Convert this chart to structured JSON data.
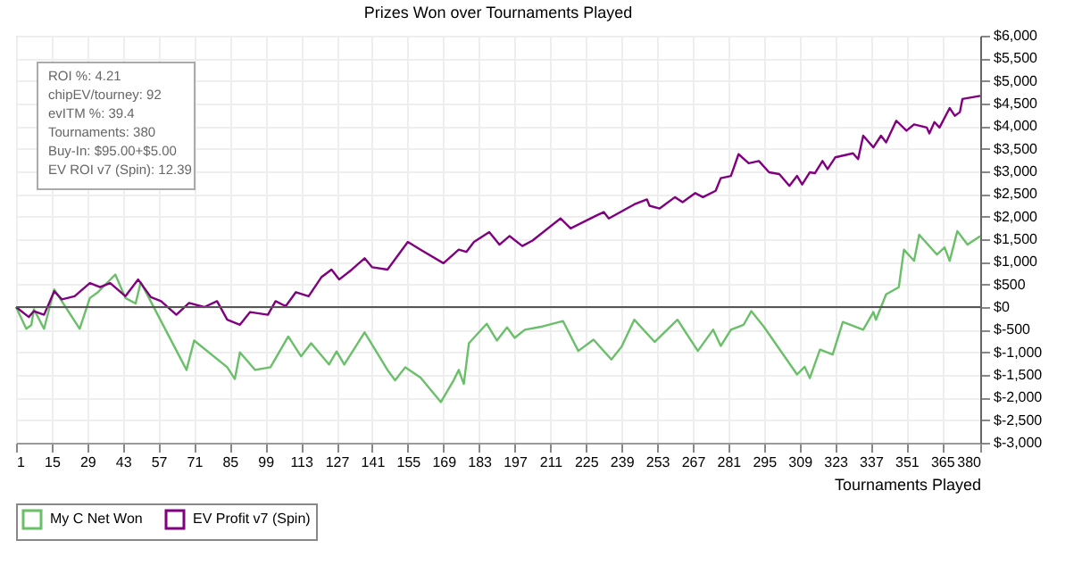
{
  "chart_data": {
    "type": "line",
    "title": "Prizes Won over Tournaments Played",
    "xlabel": "Tournaments Played",
    "annotations": [
      "ROI %: 4.21",
      "chipEV/tourney: 92",
      "evITM %: 39.4",
      "Tournaments: 380",
      "Buy-In: $95.00+$5.00",
      "EV ROI v7 (Spin): 12.39"
    ],
    "xlim": [
      1,
      380
    ],
    "xticks": [
      1,
      15,
      29,
      43,
      57,
      71,
      85,
      99,
      113,
      127,
      141,
      155,
      169,
      183,
      197,
      211,
      225,
      239,
      253,
      267,
      281,
      295,
      309,
      323,
      337,
      351,
      365,
      380
    ],
    "ylim": [
      -3000,
      6000
    ],
    "yticks": [
      {
        "value": 6000,
        "label": "$6,000"
      },
      {
        "value": 5500,
        "label": "$5,500"
      },
      {
        "value": 5000,
        "label": "$5,000"
      },
      {
        "value": 4500,
        "label": "$4,500"
      },
      {
        "value": 4000,
        "label": "$4,000"
      },
      {
        "value": 3500,
        "label": "$3,500"
      },
      {
        "value": 3000,
        "label": "$3,000"
      },
      {
        "value": 2500,
        "label": "$2,500"
      },
      {
        "value": 2000,
        "label": "$2,000"
      },
      {
        "value": 1500,
        "label": "$1,500"
      },
      {
        "value": 1000,
        "label": "$1,000"
      },
      {
        "value": 500,
        "label": "$500"
      },
      {
        "value": 0,
        "label": "$0"
      },
      {
        "value": -500,
        "label": "$-500"
      },
      {
        "value": -1000,
        "label": "$-1,000"
      },
      {
        "value": -1500,
        "label": "$-1,500"
      },
      {
        "value": -2000,
        "label": "$-2,000"
      },
      {
        "value": -2500,
        "label": "$-2,500"
      },
      {
        "value": -3000,
        "label": "$-3,000"
      }
    ],
    "grid": true,
    "legend": "bottom left",
    "marker": "none",
    "line_style": "solid",
    "ref_lines": [
      {
        "axis": "y",
        "value": 0,
        "color": "#555555"
      }
    ],
    "series": [
      {
        "name": "My C Net Won",
        "color": "#6abf69",
        "x": [
          1,
          5,
          7,
          8,
          12,
          16,
          26,
          30,
          33,
          40,
          44,
          48,
          50,
          68,
          71,
          84,
          87,
          89,
          95,
          101,
          108,
          113,
          117,
          124,
          127,
          130,
          138,
          147,
          150,
          154,
          160,
          168,
          173,
          175,
          177,
          179,
          186,
          190,
          194,
          197,
          201,
          207,
          216,
          222,
          228,
          235,
          239,
          244,
          252,
          261,
          269,
          275,
          278,
          282,
          287,
          290,
          295,
          308,
          311,
          313,
          317,
          322,
          326,
          334,
          338,
          339,
          343,
          348,
          350,
          354,
          356,
          363,
          366,
          368,
          371,
          375,
          380
        ],
        "values": [
          0,
          -480,
          -400,
          -50,
          -480,
          390,
          -480,
          200,
          320,
          720,
          200,
          80,
          550,
          -1390,
          -740,
          -1330,
          -1590,
          -1000,
          -1390,
          -1330,
          -650,
          -1090,
          -800,
          -1270,
          -980,
          -1270,
          -560,
          -1390,
          -1620,
          -1330,
          -1560,
          -2100,
          -1620,
          -1390,
          -1700,
          -800,
          -370,
          -740,
          -450,
          -680,
          -500,
          -440,
          -310,
          -970,
          -720,
          -1160,
          -880,
          -280,
          -770,
          -280,
          -970,
          -500,
          -860,
          -500,
          -390,
          -90,
          -440,
          -1490,
          -1320,
          -1570,
          -940,
          -1050,
          -330,
          -500,
          -110,
          -280,
          280,
          440,
          1270,
          1020,
          1600,
          1160,
          1320,
          1020,
          1680,
          1380,
          1570
        ]
      },
      {
        "name": "EV Profit v7 (Spin)",
        "color": "#800080",
        "x": [
          1,
          6,
          8,
          12,
          16,
          19,
          24,
          30,
          34,
          38,
          44,
          49,
          54,
          58,
          64,
          69,
          75,
          80,
          84,
          89,
          93,
          100,
          103,
          107,
          111,
          116,
          121,
          125,
          128,
          133,
          138,
          141,
          147,
          155,
          160,
          169,
          175,
          178,
          181,
          187,
          191,
          195,
          200,
          204,
          215,
          219,
          229,
          232,
          234,
          244,
          249,
          250,
          254,
          260,
          263,
          268,
          271,
          276,
          278,
          282,
          285,
          289,
          293,
          297,
          301,
          305,
          308,
          310,
          313,
          315,
          318,
          320,
          323,
          330,
          332,
          334,
          338,
          341,
          343,
          347,
          351,
          354,
          359,
          360,
          362,
          364,
          368,
          370,
          372,
          373,
          380
        ],
        "values": [
          0,
          -220,
          -90,
          -170,
          350,
          170,
          240,
          530,
          440,
          530,
          240,
          610,
          220,
          130,
          -170,
          90,
          0,
          130,
          -280,
          -390,
          -110,
          -170,
          130,
          20,
          330,
          240,
          660,
          830,
          610,
          830,
          1080,
          880,
          830,
          1440,
          1270,
          970,
          1270,
          1220,
          1440,
          1660,
          1380,
          1570,
          1350,
          1470,
          1960,
          1740,
          2020,
          2100,
          1960,
          2270,
          2380,
          2240,
          2180,
          2430,
          2320,
          2520,
          2430,
          2570,
          2850,
          2900,
          3380,
          3180,
          3230,
          2980,
          2940,
          2680,
          2900,
          2710,
          2980,
          2960,
          3230,
          3050,
          3310,
          3400,
          3270,
          3790,
          3530,
          3790,
          3640,
          4120,
          3900,
          4040,
          3970,
          3840,
          4090,
          3970,
          4400,
          4230,
          4310,
          4600,
          4670
        ]
      }
    ]
  }
}
